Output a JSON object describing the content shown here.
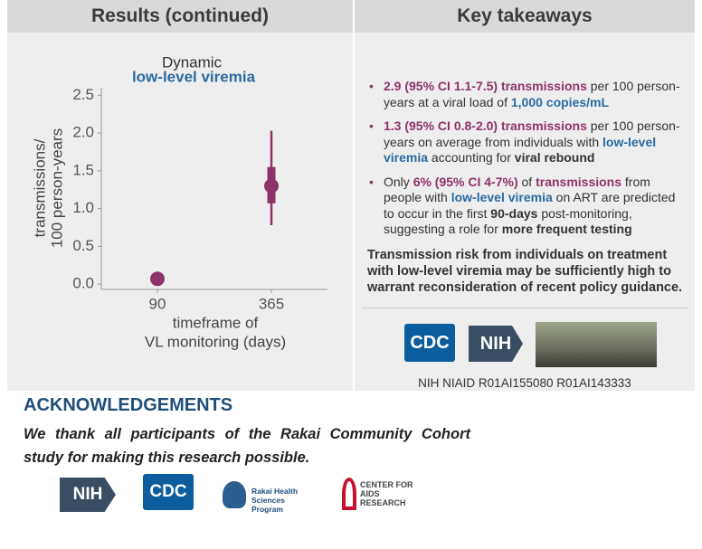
{
  "left_header": "Results (continued)",
  "right_header": "Key takeaways",
  "chart_data": {
    "type": "errorbar",
    "title": "Dynamic",
    "subtitle": "low-level viremia",
    "ylabel": [
      "transmissions/",
      "100 person-years"
    ],
    "xlabel": [
      "timeframe of",
      "VL monitoring (days)"
    ],
    "categories": [
      "90",
      "365"
    ],
    "values": [
      0.07,
      1.3
    ],
    "inner_range": [
      null,
      [
        1.07,
        1.55
      ]
    ],
    "ci": [
      null,
      [
        0.78,
        2.03
      ]
    ],
    "color": "#8e3368",
    "ylim": [
      -0.07,
      2.6
    ],
    "yticks": [
      {
        "value": 0,
        "label": "0.0"
      },
      0.5,
      {
        "value": 1,
        "label": "1.0"
      },
      1.5,
      {
        "value": 2,
        "label": "2.0"
      },
      2.5
    ]
  },
  "bullets": [
    [
      "2.9 (95% CI 1.1-7.5) transmissions",
      " per 100 person-years at a viral load of ",
      "1,000 copies/mL"
    ],
    [
      "1.3 (95% CI 0.8-2.0) transmissions",
      " per 100 person-years on average from individuals with ",
      "low-level viremia",
      " accounting for ",
      "viral rebound"
    ],
    [
      "Only ",
      "6% (95% CI 4-7%)",
      " of ",
      "transmissions",
      " from people with ",
      "low-level viremia",
      " on ART are predicted to occur in the first ",
      "90-days",
      " post-monitoring, suggesting a role for ",
      "more frequent testing"
    ]
  ],
  "conclusion": "Transmission risk from individuals on treatment with low-level viremia may be sufficiently high to warrant reconsideration of recent policy guidance.",
  "logos": [
    "CDC",
    "NIH"
  ],
  "funding": "NIH NIAID R01AI155080 R01AI143333",
  "acknowledgements": {
    "title": "ACKNOWLEDGEMENTS",
    "text": "We thank all participants of the Rakai Community Cohort study for making this research possible."
  },
  "bottom_logos": [
    "NIH",
    "CDC",
    "Rakai Health Sciences Program",
    "CENTER FOR AIDS RESEARCH"
  ]
}
